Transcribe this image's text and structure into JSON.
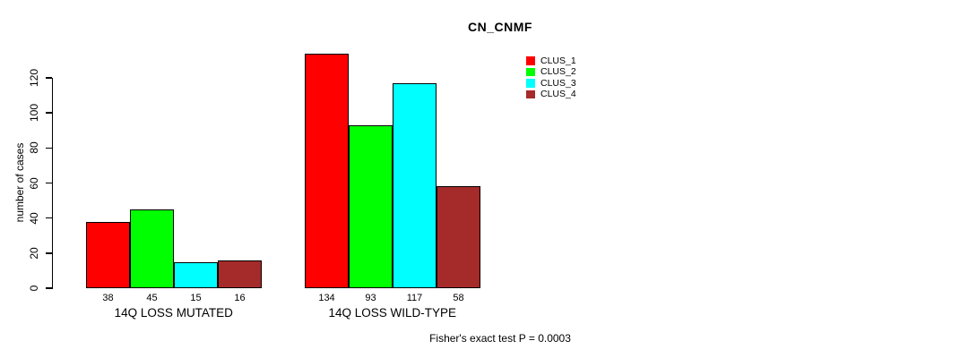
{
  "title": "CN_CNMF",
  "ylabel": "number of cases",
  "footer": "Fisher's exact test P = 0.0003",
  "legend": {
    "position": "top-right-inside",
    "items": [
      {
        "label": "CLUS_1",
        "color": "#FF0000"
      },
      {
        "label": "CLUS_2",
        "color": "#00FF00"
      },
      {
        "label": "CLUS_3",
        "color": "#00FFFF"
      },
      {
        "label": "CLUS_4",
        "color": "#A52A2A"
      }
    ]
  },
  "chart_data": {
    "type": "bar",
    "title": "CN_CNMF",
    "xlabel": "",
    "ylabel": "number of cases",
    "categories": [
      "14Q LOSS MUTATED",
      "14Q LOSS WILD-TYPE"
    ],
    "series": [
      {
        "name": "CLUS_1",
        "color": "#FF0000",
        "values": [
          38,
          134
        ]
      },
      {
        "name": "CLUS_2",
        "color": "#00FF00",
        "values": [
          45,
          93
        ]
      },
      {
        "name": "CLUS_3",
        "color": "#00FFFF",
        "values": [
          15,
          117
        ]
      },
      {
        "name": "CLUS_4",
        "color": "#A52A2A",
        "values": [
          16,
          58
        ]
      }
    ],
    "bar_value_labels": true,
    "yticks": [
      0,
      20,
      40,
      60,
      80,
      100,
      120
    ],
    "ylim": [
      0,
      137
    ],
    "grid": false,
    "legend_position": "top-right-inside",
    "annotation": "Fisher's exact test P = 0.0003",
    "bar_border_color": "#000000"
  }
}
